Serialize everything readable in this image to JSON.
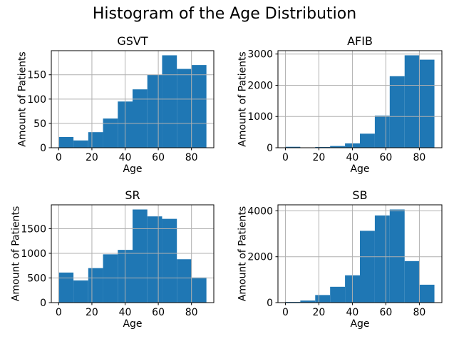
{
  "suptitle": "Histogram of the Age Distribution",
  "colors": {
    "bar": "#1f77b4",
    "grid": "#b0b0b0",
    "spine": "#000000",
    "text": "#000000",
    "background": "#ffffff"
  },
  "chart_data": [
    {
      "type": "bar",
      "title": "GSVT",
      "xlabel": "Age",
      "ylabel": "Amount of Patients",
      "bin_edges": [
        0,
        8.9,
        17.8,
        26.7,
        35.6,
        44.5,
        53.4,
        62.3,
        71.2,
        80.1,
        89
      ],
      "values": [
        22,
        15,
        32,
        60,
        95,
        120,
        150,
        190,
        162,
        170
      ],
      "xticks": [
        0,
        20,
        40,
        60,
        80
      ],
      "yticks": [
        0,
        50,
        100,
        150
      ],
      "xlim": [
        -4.45,
        93.45
      ],
      "ylim": [
        0,
        199.5
      ],
      "grid": true
    },
    {
      "type": "bar",
      "title": "AFIB",
      "xlabel": "Age",
      "ylabel": "Amount of Patients",
      "bin_edges": [
        0,
        8.9,
        17.8,
        26.7,
        35.6,
        44.5,
        53.4,
        62.3,
        71.2,
        80.1,
        89
      ],
      "values": [
        30,
        10,
        25,
        55,
        140,
        450,
        1030,
        2290,
        2960,
        2820
      ],
      "xticks": [
        0,
        20,
        40,
        60,
        80
      ],
      "yticks": [
        0,
        1000,
        2000,
        3000
      ],
      "xlim": [
        -4.45,
        93.45
      ],
      "ylim": [
        0,
        3108
      ],
      "grid": true
    },
    {
      "type": "bar",
      "title": "SR",
      "xlabel": "Age",
      "ylabel": "Amount of Patients",
      "bin_edges": [
        0,
        8.9,
        17.8,
        26.7,
        35.6,
        44.5,
        53.4,
        62.3,
        71.2,
        80.1,
        89
      ],
      "values": [
        610,
        450,
        700,
        980,
        1070,
        1890,
        1750,
        1700,
        880,
        510
      ],
      "xticks": [
        0,
        20,
        40,
        60,
        80
      ],
      "yticks": [
        0,
        500,
        1000,
        1500
      ],
      "xlim": [
        -4.45,
        93.45
      ],
      "ylim": [
        0,
        1984.5
      ],
      "grid": true
    },
    {
      "type": "bar",
      "title": "SB",
      "xlabel": "Age",
      "ylabel": "Amount of Patients",
      "bin_edges": [
        0,
        8.9,
        17.8,
        26.7,
        35.6,
        44.5,
        53.4,
        62.3,
        71.2,
        80.1,
        89
      ],
      "values": [
        30,
        90,
        330,
        690,
        1190,
        3130,
        3800,
        4060,
        1810,
        780
      ],
      "xticks": [
        0,
        20,
        40,
        60,
        80
      ],
      "yticks": [
        0,
        2000,
        4000
      ],
      "xlim": [
        -4.45,
        93.45
      ],
      "ylim": [
        0,
        4263
      ],
      "grid": true
    }
  ]
}
